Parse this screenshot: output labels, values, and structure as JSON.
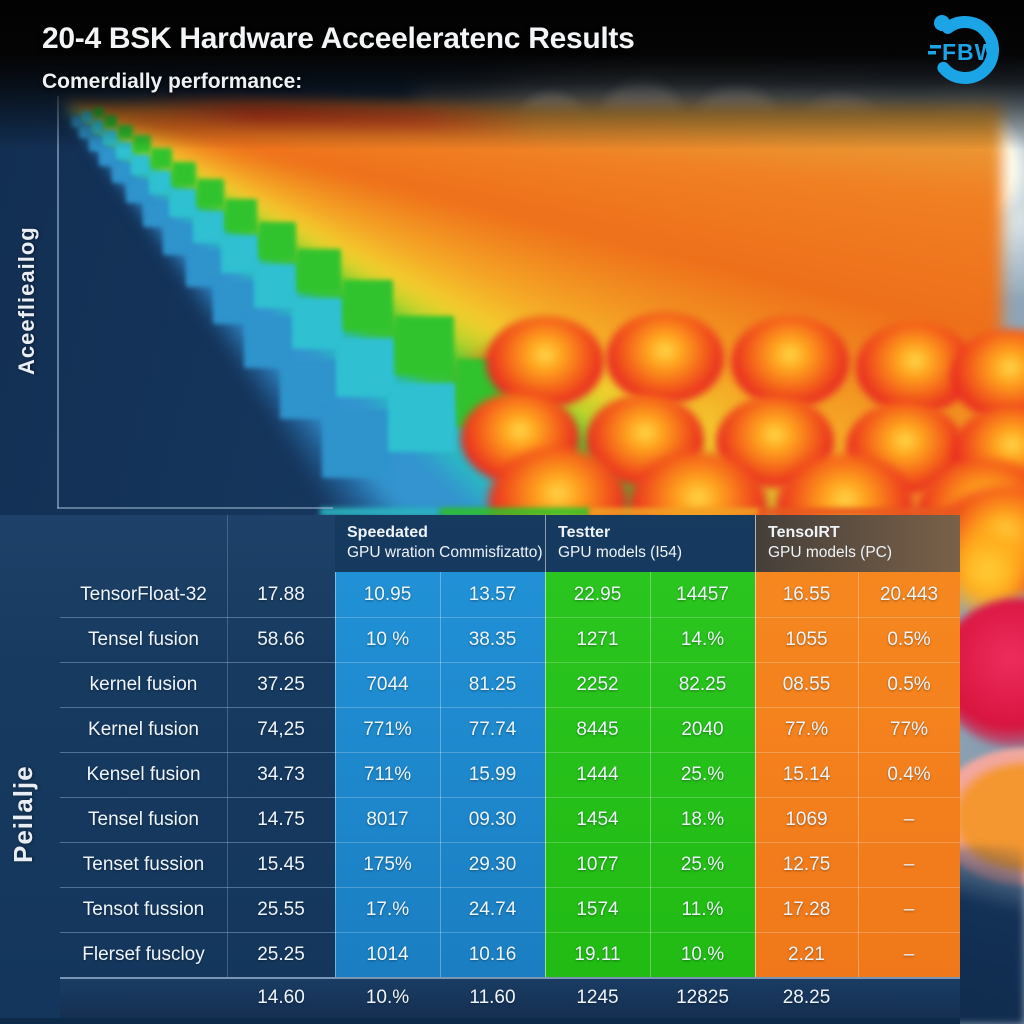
{
  "page": {
    "title_bar": {
      "title": "20-4 BSK Hardware Acceeleratenc Results",
      "subtitle": "Comerdially performance:"
    },
    "logo": {
      "text": "FBW",
      "color": "#1ba5e6"
    }
  },
  "chart_data": {
    "type": "table",
    "title": "20-4 BSK Hardware Acceeleratenc Results",
    "subtitle": "Comerdially performance:",
    "value_axis_label": "Aceeflieailog",
    "row_group_label": "Peilalje",
    "column_groups": [
      {
        "line1": "Speedated",
        "line2": "GPU wration Commisfizatto)",
        "color": "#1e85c9"
      },
      {
        "line1": "Testter",
        "line2": "GPU models (I54)",
        "color": "#27c31d"
      },
      {
        "line1": "TensoIRT",
        "line2": "GPU models (PC)",
        "color": "#f47d1c"
      }
    ],
    "rows": [
      {
        "label": "TensorFloat-32",
        "base": "17.88",
        "cells": [
          "10.95",
          "13.57",
          "22.95",
          "14457",
          "16.55",
          "20.443"
        ]
      },
      {
        "label": "Tensel fusion",
        "base": "58.66",
        "cells": [
          "10 %",
          "38.35",
          "1271",
          "14.%",
          "1055",
          "0.5%"
        ]
      },
      {
        "label": "kernel fusion",
        "base": "37.25",
        "cells": [
          "7044",
          "81.25",
          "2252",
          "82.25",
          "08.55",
          "0.5%"
        ]
      },
      {
        "label": "Kernel fusion",
        "base": "74,25",
        "cells": [
          "771%",
          "77.74",
          "8445",
          "2040",
          "77.%",
          "77%"
        ]
      },
      {
        "label": "Kensel fusion",
        "base": "34.73",
        "cells": [
          "711%",
          "15.99",
          "1444",
          "25.%",
          "15.14",
          "0.4%"
        ]
      },
      {
        "label": "Tensel fusion",
        "base": "14.75",
        "cells": [
          "8017",
          "09.30",
          "1454",
          "18.%",
          "1069",
          "–"
        ]
      },
      {
        "label": "Tenset fussion",
        "base": "15.45",
        "cells": [
          "175%",
          "29.30",
          "1077",
          "25.%",
          "12.75",
          "–"
        ]
      },
      {
        "label": "Tensot fussion",
        "base": "25.55",
        "cells": [
          "17.%",
          "24.74",
          "1574",
          "11.%",
          "17.28",
          "–"
        ]
      },
      {
        "label": "Flersef fuscloy",
        "base": "25.25",
        "cells": [
          "1014",
          "10.16",
          "19.11",
          "10.%",
          "2.21",
          "–"
        ]
      }
    ],
    "footer": {
      "label": "",
      "base": "14.60",
      "cells": [
        "10.%",
        "11.60",
        "1245",
        "12825",
        "28.25",
        ""
      ]
    }
  },
  "palette": {
    "panel_navy": "#16365c",
    "table_blue": "#1e85c9",
    "table_green": "#27c31d",
    "table_orange": "#f47d1c",
    "footer_grey_brown": "#6b5a49",
    "logo_blue": "#1ba5e6",
    "bar_cube_colors": [
      "#2f93cc",
      "#2fc0d2",
      "#31c32e"
    ],
    "fan_colors": [
      "#3394cf",
      "#2ab9c4",
      "#38c436",
      "#f2cf2e",
      "#f07f22",
      "#e8301c"
    ]
  }
}
